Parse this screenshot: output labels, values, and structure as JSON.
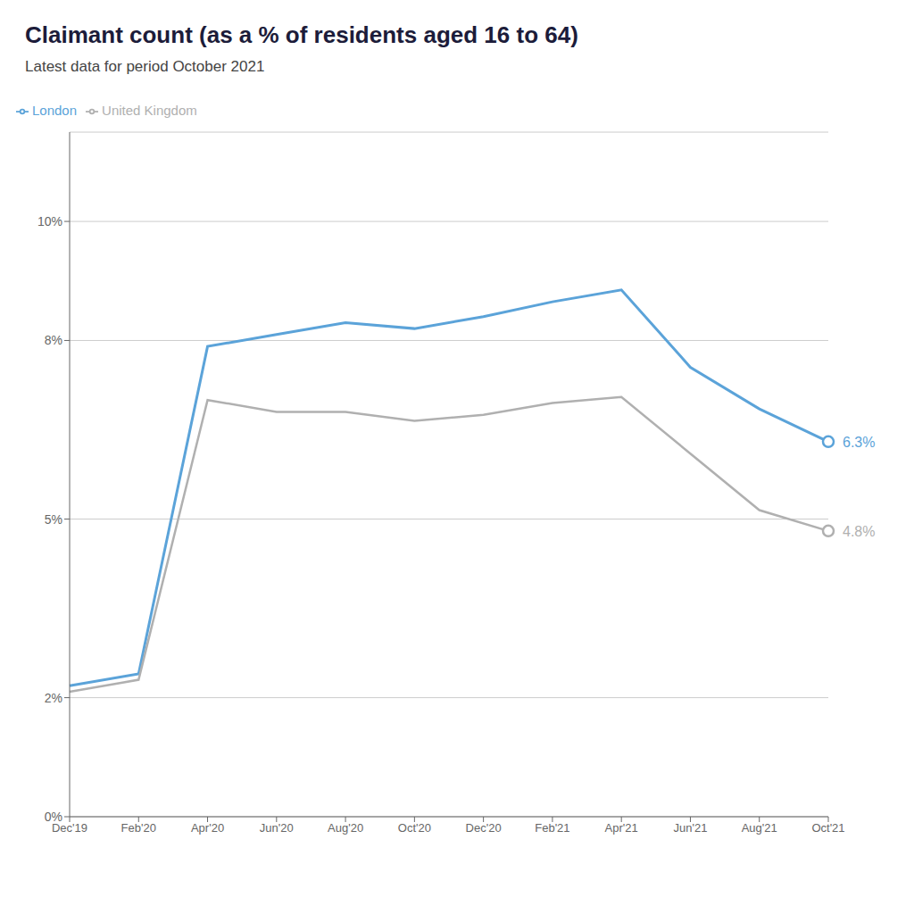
{
  "chart_data": {
    "type": "line",
    "title": "Claimant count (as a % of residents aged 16 to 64)",
    "subtitle": "Latest data for period October 2021",
    "categories": [
      "Dec'19",
      "Feb'20",
      "Apr'20",
      "Jun'20",
      "Aug'20",
      "Oct'20",
      "Dec'20",
      "Feb'21",
      "Apr'21",
      "Jun'21",
      "Aug'21",
      "Oct'21"
    ],
    "series": [
      {
        "name": "London",
        "color": "#5ba3d9",
        "values": [
          2.2,
          2.4,
          7.9,
          8.1,
          8.3,
          8.2,
          8.4,
          8.65,
          8.85,
          7.55,
          6.85,
          6.3
        ]
      },
      {
        "name": "United Kingdom",
        "color": "#b0b0b0",
        "values": [
          2.1,
          2.3,
          7.0,
          6.8,
          6.8,
          6.65,
          6.75,
          6.95,
          7.05,
          6.1,
          5.15,
          4.8
        ]
      }
    ],
    "ylim": [
      0,
      11.5
    ],
    "yticks": [
      {
        "value": 0,
        "label": "0%"
      },
      {
        "value": 2,
        "label": "2%"
      },
      {
        "value": 5,
        "label": "5%"
      },
      {
        "value": 8,
        "label": "8%"
      },
      {
        "value": 10,
        "label": "10%"
      }
    ],
    "grid": true,
    "legend": "upper left",
    "annotations": [
      {
        "text": "6.3%",
        "x": "Oct'21",
        "y": 6.3,
        "color": "#5ba3d9",
        "marker": "circle"
      },
      {
        "text": "4.8%",
        "x": "Oct'21",
        "y": 4.8,
        "color": "#b0b0b0",
        "marker": "circle"
      }
    ]
  }
}
